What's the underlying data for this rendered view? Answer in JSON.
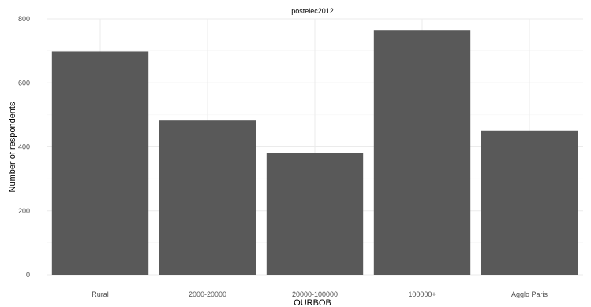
{
  "chart_data": {
    "type": "bar",
    "title": "postelec2012",
    "xlabel": "OURBOB",
    "ylabel": "Number of respondents",
    "categories": [
      "Rural",
      "2000-20000",
      "20000-100000",
      "100000+",
      "Agglo Paris"
    ],
    "values": [
      698,
      482,
      380,
      765,
      451
    ],
    "ylim": [
      0,
      800
    ],
    "yticks": [
      0,
      200,
      400,
      600,
      800
    ],
    "grid": true,
    "legend": "none",
    "bar_color": "#595959",
    "grid_color": "#ebebeb"
  }
}
